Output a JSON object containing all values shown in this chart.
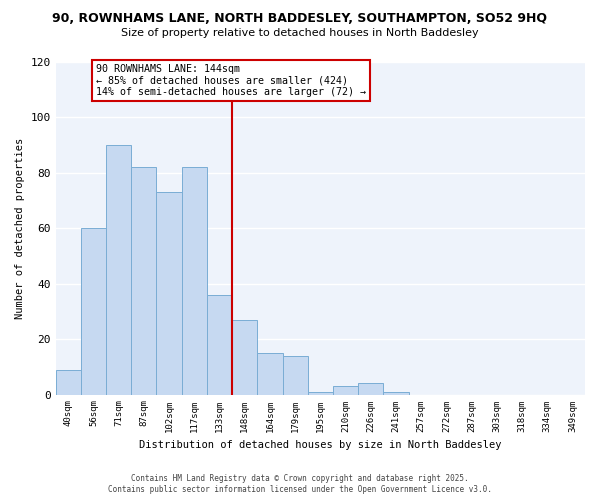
{
  "title_line1": "90, ROWNHAMS LANE, NORTH BADDESLEY, SOUTHAMPTON, SO52 9HQ",
  "title_line2": "Size of property relative to detached houses in North Baddesley",
  "xlabel": "Distribution of detached houses by size in North Baddesley",
  "ylabel": "Number of detached properties",
  "bar_labels": [
    "40sqm",
    "56sqm",
    "71sqm",
    "87sqm",
    "102sqm",
    "117sqm",
    "133sqm",
    "148sqm",
    "164sqm",
    "179sqm",
    "195sqm",
    "210sqm",
    "226sqm",
    "241sqm",
    "257sqm",
    "272sqm",
    "287sqm",
    "303sqm",
    "318sqm",
    "334sqm",
    "349sqm"
  ],
  "bar_values": [
    9,
    60,
    90,
    82,
    73,
    82,
    36,
    27,
    15,
    14,
    1,
    3,
    4,
    1,
    0,
    0,
    0,
    0,
    0,
    0,
    0
  ],
  "bar_color": "#c6d9f1",
  "bar_edge_color": "#7aadd4",
  "vline_color": "#cc0000",
  "annotation_title": "90 ROWNHAMS LANE: 144sqm",
  "annotation_line2": "← 85% of detached houses are smaller (424)",
  "annotation_line3": "14% of semi-detached houses are larger (72) →",
  "annotation_box_color": "#ffffff",
  "annotation_box_edge": "#cc0000",
  "ylim": [
    0,
    120
  ],
  "yticks": [
    0,
    20,
    40,
    60,
    80,
    100,
    120
  ],
  "plot_bg_color": "#eef3fb",
  "fig_bg_color": "#ffffff",
  "grid_color": "#ffffff",
  "footer_line1": "Contains HM Land Registry data © Crown copyright and database right 2025.",
  "footer_line2": "Contains public sector information licensed under the Open Government Licence v3.0."
}
